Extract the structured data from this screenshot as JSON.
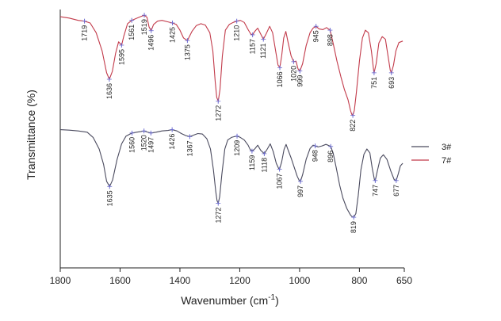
{
  "chart_data": {
    "type": "line",
    "xlabel": "Wavenumber (cm",
    "xlabel_sup": "-1",
    "xlabel_close": ")",
    "ylabel": "Transmittance (%)",
    "x_axis": {
      "reversed": true,
      "range": [
        1800,
        650
      ],
      "ticks": [
        1800,
        1600,
        1400,
        1200,
        1000,
        800,
        650
      ]
    },
    "y_axis": {
      "unit": "arbitrary, offset traces",
      "range": [
        0,
        10
      ],
      "tick_labels": "none"
    },
    "grid": false,
    "legend": {
      "placement": "right-middle",
      "entries": [
        "3#",
        "7#"
      ]
    },
    "colors": {
      "3#": "#4a4a5e",
      "7#": "#c23a4a",
      "axis": "#222222",
      "peak_marker": "#6a6ad0"
    },
    "series": [
      {
        "name": "7#",
        "baseline": 9.72,
        "points": [
          [
            1800,
            9.72
          ],
          [
            1770,
            9.67
          ],
          [
            1740,
            9.58
          ],
          [
            1719,
            9.55
          ],
          [
            1700,
            9.48
          ],
          [
            1680,
            9.1
          ],
          [
            1660,
            8.4
          ],
          [
            1645,
            7.55
          ],
          [
            1636,
            7.3
          ],
          [
            1626,
            7.6
          ],
          [
            1615,
            8.3
          ],
          [
            1605,
            8.75
          ],
          [
            1595,
            8.62
          ],
          [
            1588,
            8.95
          ],
          [
            1575,
            9.45
          ],
          [
            1561,
            9.58
          ],
          [
            1545,
            9.66
          ],
          [
            1530,
            9.73
          ],
          [
            1519,
            9.78
          ],
          [
            1510,
            9.7
          ],
          [
            1503,
            9.32
          ],
          [
            1496,
            9.18
          ],
          [
            1488,
            9.42
          ],
          [
            1475,
            9.55
          ],
          [
            1460,
            9.58
          ],
          [
            1440,
            9.52
          ],
          [
            1425,
            9.48
          ],
          [
            1412,
            9.42
          ],
          [
            1400,
            9.2
          ],
          [
            1388,
            8.9
          ],
          [
            1375,
            8.8
          ],
          [
            1360,
            9.15
          ],
          [
            1345,
            9.38
          ],
          [
            1330,
            9.45
          ],
          [
            1315,
            9.4
          ],
          [
            1300,
            9.1
          ],
          [
            1290,
            8.4
          ],
          [
            1282,
            7.2
          ],
          [
            1277,
            6.6
          ],
          [
            1272,
            6.45
          ],
          [
            1266,
            6.9
          ],
          [
            1258,
            8.2
          ],
          [
            1248,
            9.2
          ],
          [
            1235,
            9.42
          ],
          [
            1222,
            9.5
          ],
          [
            1210,
            9.55
          ],
          [
            1198,
            9.58
          ],
          [
            1185,
            9.5
          ],
          [
            1172,
            9.22
          ],
          [
            1163,
            9.05
          ],
          [
            1157,
            9.02
          ],
          [
            1150,
            9.15
          ],
          [
            1140,
            9.28
          ],
          [
            1130,
            9.05
          ],
          [
            1121,
            8.85
          ],
          [
            1112,
            9.05
          ],
          [
            1100,
            9.35
          ],
          [
            1090,
            9.1
          ],
          [
            1080,
            8.4
          ],
          [
            1072,
            7.85
          ],
          [
            1066,
            7.75
          ],
          [
            1060,
            8.2
          ],
          [
            1053,
            8.9
          ],
          [
            1046,
            9.15
          ],
          [
            1038,
            8.7
          ],
          [
            1028,
            8.2
          ],
          [
            1020,
            7.98
          ],
          [
            1012,
            8.0
          ],
          [
            1005,
            7.7
          ],
          [
            999,
            7.62
          ],
          [
            990,
            7.9
          ],
          [
            978,
            8.6
          ],
          [
            965,
            9.1
          ],
          [
            955,
            9.28
          ],
          [
            945,
            9.35
          ],
          [
            935,
            9.25
          ],
          [
            922,
            9.22
          ],
          [
            910,
            9.3
          ],
          [
            898,
            9.2
          ],
          [
            888,
            8.7
          ],
          [
            875,
            8.0
          ],
          [
            862,
            7.4
          ],
          [
            850,
            6.9
          ],
          [
            838,
            6.5
          ],
          [
            830,
            6.1
          ],
          [
            826,
            5.95
          ],
          [
            822,
            5.9
          ],
          [
            817,
            6.1
          ],
          [
            810,
            6.8
          ],
          [
            800,
            8.0
          ],
          [
            790,
            8.9
          ],
          [
            780,
            9.2
          ],
          [
            770,
            9.1
          ],
          [
            760,
            8.4
          ],
          [
            752,
            7.6
          ],
          [
            751,
            7.55
          ],
          [
            744,
            7.9
          ],
          [
            735,
            8.7
          ],
          [
            724,
            8.95
          ],
          [
            713,
            8.85
          ],
          [
            703,
            8.1
          ],
          [
            697,
            7.65
          ],
          [
            693,
            7.55
          ],
          [
            686,
            7.85
          ],
          [
            678,
            8.4
          ],
          [
            668,
            8.72
          ],
          [
            655,
            8.78
          ]
        ]
      },
      {
        "name": "3#",
        "baseline": 5.35,
        "points": [
          [
            1800,
            5.35
          ],
          [
            1770,
            5.33
          ],
          [
            1740,
            5.3
          ],
          [
            1710,
            5.25
          ],
          [
            1690,
            5.05
          ],
          [
            1670,
            4.6
          ],
          [
            1655,
            4.0
          ],
          [
            1645,
            3.35
          ],
          [
            1635,
            3.15
          ],
          [
            1625,
            3.4
          ],
          [
            1610,
            4.2
          ],
          [
            1595,
            4.8
          ],
          [
            1580,
            5.1
          ],
          [
            1560,
            5.22
          ],
          [
            1545,
            5.25
          ],
          [
            1530,
            5.28
          ],
          [
            1520,
            5.3
          ],
          [
            1510,
            5.26
          ],
          [
            1497,
            5.22
          ],
          [
            1480,
            5.25
          ],
          [
            1460,
            5.3
          ],
          [
            1440,
            5.32
          ],
          [
            1426,
            5.35
          ],
          [
            1410,
            5.3
          ],
          [
            1395,
            5.2
          ],
          [
            1380,
            5.12
          ],
          [
            1367,
            5.08
          ],
          [
            1352,
            5.15
          ],
          [
            1340,
            5.2
          ],
          [
            1325,
            5.18
          ],
          [
            1310,
            5.0
          ],
          [
            1298,
            4.6
          ],
          [
            1288,
            3.8
          ],
          [
            1280,
            2.95
          ],
          [
            1276,
            2.6
          ],
          [
            1272,
            2.5
          ],
          [
            1267,
            2.75
          ],
          [
            1260,
            3.6
          ],
          [
            1250,
            4.6
          ],
          [
            1240,
            4.95
          ],
          [
            1228,
            5.05
          ],
          [
            1218,
            5.08
          ],
          [
            1209,
            5.1
          ],
          [
            1198,
            5.05
          ],
          [
            1185,
            4.95
          ],
          [
            1172,
            4.75
          ],
          [
            1165,
            4.58
          ],
          [
            1159,
            4.52
          ],
          [
            1150,
            4.6
          ],
          [
            1140,
            4.75
          ],
          [
            1130,
            4.55
          ],
          [
            1118,
            4.42
          ],
          [
            1108,
            4.6
          ],
          [
            1098,
            4.8
          ],
          [
            1088,
            4.5
          ],
          [
            1078,
            4.05
          ],
          [
            1070,
            3.85
          ],
          [
            1067,
            3.82
          ],
          [
            1060,
            4.1
          ],
          [
            1052,
            4.58
          ],
          [
            1045,
            4.78
          ],
          [
            1038,
            4.55
          ],
          [
            1028,
            4.25
          ],
          [
            1018,
            3.9
          ],
          [
            1008,
            3.55
          ],
          [
            1001,
            3.38
          ],
          [
            997,
            3.35
          ],
          [
            990,
            3.6
          ],
          [
            978,
            4.2
          ],
          [
            965,
            4.62
          ],
          [
            955,
            4.75
          ],
          [
            948,
            4.72
          ],
          [
            938,
            4.68
          ],
          [
            925,
            4.72
          ],
          [
            912,
            4.78
          ],
          [
            905,
            4.75
          ],
          [
            896,
            4.7
          ],
          [
            888,
            4.45
          ],
          [
            878,
            3.9
          ],
          [
            866,
            3.2
          ],
          [
            855,
            2.7
          ],
          [
            842,
            2.3
          ],
          [
            830,
            2.05
          ],
          [
            824,
            1.98
          ],
          [
            819,
            1.96
          ],
          [
            812,
            2.1
          ],
          [
            804,
            2.8
          ],
          [
            795,
            3.8
          ],
          [
            785,
            4.4
          ],
          [
            775,
            4.6
          ],
          [
            765,
            4.45
          ],
          [
            757,
            3.85
          ],
          [
            750,
            3.42
          ],
          [
            747,
            3.38
          ],
          [
            740,
            3.75
          ],
          [
            730,
            4.25
          ],
          [
            720,
            4.38
          ],
          [
            708,
            4.2
          ],
          [
            695,
            3.75
          ],
          [
            684,
            3.42
          ],
          [
            677,
            3.38
          ],
          [
            670,
            3.65
          ],
          [
            663,
            3.95
          ],
          [
            655,
            4.05
          ]
        ]
      }
    ],
    "peak_labels": [
      {
        "series": "7#",
        "x": 1719,
        "text": "1719",
        "pos": "below"
      },
      {
        "series": "7#",
        "x": 1636,
        "text": "1636",
        "pos": "below"
      },
      {
        "series": "7#",
        "x": 1595,
        "text": "1595",
        "pos": "below"
      },
      {
        "series": "7#",
        "x": 1561,
        "text": "1561",
        "pos": "below"
      },
      {
        "series": "7#",
        "x": 1519,
        "text": "1519",
        "pos": "below"
      },
      {
        "series": "7#",
        "x": 1496,
        "text": "1496",
        "pos": "below"
      },
      {
        "series": "7#",
        "x": 1425,
        "text": "1425",
        "pos": "below"
      },
      {
        "series": "7#",
        "x": 1375,
        "text": "1375",
        "pos": "below"
      },
      {
        "series": "7#",
        "x": 1272,
        "text": "1272",
        "pos": "below"
      },
      {
        "series": "7#",
        "x": 1210,
        "text": "1210",
        "pos": "below"
      },
      {
        "series": "7#",
        "x": 1157,
        "text": "1157",
        "pos": "below"
      },
      {
        "series": "7#",
        "x": 1121,
        "text": "1121",
        "pos": "below"
      },
      {
        "series": "7#",
        "x": 1066,
        "text": "1066",
        "pos": "below"
      },
      {
        "series": "7#",
        "x": 1020,
        "text": "1020",
        "pos": "below"
      },
      {
        "series": "7#",
        "x": 999,
        "text": "999",
        "pos": "below"
      },
      {
        "series": "7#",
        "x": 945,
        "text": "945",
        "pos": "below"
      },
      {
        "series": "7#",
        "x": 898,
        "text": "898",
        "pos": "below"
      },
      {
        "series": "7#",
        "x": 822,
        "text": "822",
        "pos": "below"
      },
      {
        "series": "7#",
        "x": 751,
        "text": "751",
        "pos": "below"
      },
      {
        "series": "7#",
        "x": 693,
        "text": "693",
        "pos": "below"
      },
      {
        "series": "3#",
        "x": 1635,
        "text": "1635",
        "pos": "below"
      },
      {
        "series": "3#",
        "x": 1560,
        "text": "1560",
        "pos": "below"
      },
      {
        "series": "3#",
        "x": 1520,
        "text": "1520",
        "pos": "below"
      },
      {
        "series": "3#",
        "x": 1497,
        "text": "1497",
        "pos": "below"
      },
      {
        "series": "3#",
        "x": 1426,
        "text": "1426",
        "pos": "below"
      },
      {
        "series": "3#",
        "x": 1367,
        "text": "1367",
        "pos": "below"
      },
      {
        "series": "3#",
        "x": 1272,
        "text": "1272",
        "pos": "below"
      },
      {
        "series": "3#",
        "x": 1209,
        "text": "1209",
        "pos": "below"
      },
      {
        "series": "3#",
        "x": 1159,
        "text": "1159",
        "pos": "below"
      },
      {
        "series": "3#",
        "x": 1118,
        "text": "1118",
        "pos": "below"
      },
      {
        "series": "3#",
        "x": 1067,
        "text": "1067",
        "pos": "below"
      },
      {
        "series": "3#",
        "x": 997,
        "text": "997",
        "pos": "below"
      },
      {
        "series": "3#",
        "x": 948,
        "text": "948",
        "pos": "below"
      },
      {
        "series": "3#",
        "x": 896,
        "text": "896",
        "pos": "below"
      },
      {
        "series": "3#",
        "x": 819,
        "text": "819",
        "pos": "below"
      },
      {
        "series": "3#",
        "x": 747,
        "text": "747",
        "pos": "below"
      },
      {
        "series": "3#",
        "x": 677,
        "text": "677",
        "pos": "below"
      }
    ]
  }
}
